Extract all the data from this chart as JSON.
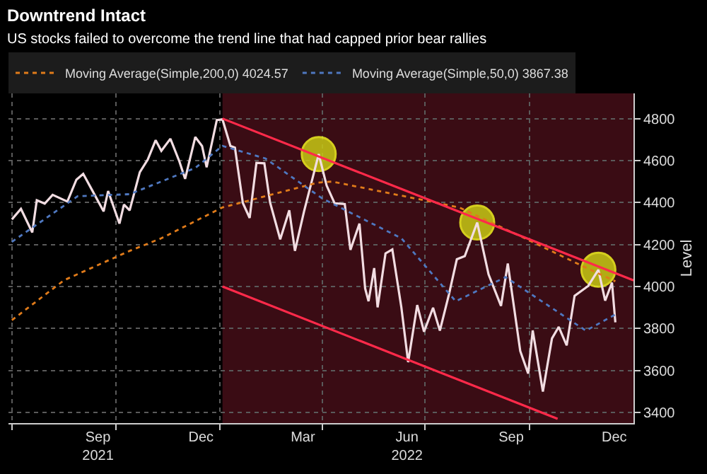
{
  "chart_data": {
    "type": "line",
    "title": "Downtrend Intact",
    "subtitle": "US stocks failed to overcome the trend line that had capped prior bear rallies",
    "ylabel": "Level",
    "xlim": [
      "2021-06-28",
      "2023-01-01"
    ],
    "xticks": [
      {
        "value": "2021-07-01",
        "label": null
      },
      {
        "value": "2021-09-15",
        "label": "Sep\n2021"
      },
      {
        "value": "2021-10-01",
        "label": null
      },
      {
        "value": "2021-12-15",
        "label": "Dec"
      },
      {
        "value": "2022-01-01",
        "label": null
      },
      {
        "value": "2022-03-15",
        "label": "Mar"
      },
      {
        "value": "2022-04-01",
        "label": null
      },
      {
        "value": "2022-06-15",
        "label": "Jun\n2022"
      },
      {
        "value": "2022-07-01",
        "label": null
      },
      {
        "value": "2022-09-15",
        "label": "Sep"
      },
      {
        "value": "2022-10-01",
        "label": null
      },
      {
        "value": "2022-12-15",
        "label": "Dec"
      }
    ],
    "ylim": [
      3350,
      4920
    ],
    "yticks": [
      3400,
      3600,
      3800,
      4000,
      4200,
      4400,
      4600,
      4800
    ],
    "grid": true,
    "legend": "top",
    "bands": [
      {
        "axis": "x",
        "from": "2022-01-03",
        "to": "2023-01-01",
        "color": "#3a0c14"
      }
    ],
    "series": [
      {
        "color": "#f2dde2",
        "line_style": "solid",
        "x": [
          "2021-07-01",
          "2021-07-09",
          "2021-07-19",
          "2021-07-23",
          "2021-07-30",
          "2021-08-06",
          "2021-08-19",
          "2021-08-27",
          "2021-09-02",
          "2021-09-10",
          "2021-09-20",
          "2021-09-24",
          "2021-10-04",
          "2021-10-08",
          "2021-10-13",
          "2021-10-22",
          "2021-10-29",
          "2021-11-05",
          "2021-11-10",
          "2021-11-18",
          "2021-11-26",
          "2021-12-01",
          "2021-12-10",
          "2021-12-16",
          "2021-12-20",
          "2021-12-29",
          "2022-01-03",
          "2022-01-10",
          "2022-01-14",
          "2022-01-21",
          "2022-01-27",
          "2022-02-02",
          "2022-02-09",
          "2022-02-14",
          "2022-02-23",
          "2022-03-03",
          "2022-03-08",
          "2022-03-16",
          "2022-03-29",
          "2022-04-05",
          "2022-04-12",
          "2022-04-21",
          "2022-04-26",
          "2022-05-04",
          "2022-05-09",
          "2022-05-12",
          "2022-05-17",
          "2022-05-20",
          "2022-05-27",
          "2022-06-02",
          "2022-06-10",
          "2022-06-16",
          "2022-06-24",
          "2022-06-30",
          "2022-07-08",
          "2022-07-14",
          "2022-07-22",
          "2022-07-29",
          "2022-08-05",
          "2022-08-16",
          "2022-08-26",
          "2022-09-06",
          "2022-09-12",
          "2022-09-23",
          "2022-09-30",
          "2022-10-04",
          "2022-10-13",
          "2022-10-21",
          "2022-10-27",
          "2022-11-03",
          "2022-11-10",
          "2022-11-22",
          "2022-12-01",
          "2022-12-07",
          "2022-12-13",
          "2022-12-16"
        ],
        "values": [
          4320,
          4370,
          4258,
          4411,
          4395,
          4437,
          4405,
          4509,
          4537,
          4458,
          4358,
          4455,
          4300,
          4391,
          4363,
          4545,
          4605,
          4697,
          4646,
          4704,
          4595,
          4513,
          4712,
          4669,
          4568,
          4793,
          4796,
          4670,
          4662,
          4398,
          4327,
          4589,
          4587,
          4401,
          4225,
          4363,
          4170,
          4357,
          4631,
          4481,
          4397,
          4393,
          4175,
          4300,
          3991,
          3930,
          4088,
          3901,
          4158,
          4177,
          3901,
          3640,
          3912,
          3785,
          3899,
          3790,
          3962,
          4130,
          4145,
          4305,
          4058,
          3908,
          4110,
          3693,
          3586,
          3791,
          3500,
          3753,
          3808,
          3720,
          3956,
          4003,
          4080,
          3933,
          4019,
          3830
        ]
      },
      {
        "type": "line",
        "name": "Moving Average(Simple,200,0) 4024.57",
        "color": "#e07b1a",
        "line_style": "dotted",
        "x": [
          "2021-07-01",
          "2021-08-16",
          "2021-10-13",
          "2021-11-10",
          "2022-01-03",
          "2022-03-28",
          "2022-04-10",
          "2022-07-31",
          "2022-09-27",
          "2022-11-20",
          "2022-12-16"
        ],
        "values": [
          3840,
          4030,
          4170,
          4230,
          4377,
          4495,
          4500,
          4377,
          4230,
          4090,
          4025
        ]
      },
      {
        "type": "line",
        "name": "Moving Average(Simple,50,0) 3867.38",
        "color": "#4f78c0",
        "line_style": "dotted",
        "x": [
          "2021-07-01",
          "2021-08-28",
          "2021-10-13",
          "2021-12-10",
          "2022-01-03",
          "2022-02-10",
          "2022-04-01",
          "2022-06-10",
          "2022-07-28",
          "2022-09-10",
          "2022-11-20",
          "2022-12-16"
        ],
        "values": [
          4213,
          4430,
          4440,
          4565,
          4670,
          4610,
          4420,
          4230,
          3930,
          4045,
          3790,
          3867
        ]
      },
      {
        "type": "line",
        "color": "#ff2a4a",
        "line_style": "solid",
        "x": [
          "2022-01-03",
          "2023-01-01"
        ],
        "values": [
          4800,
          4030
        ]
      },
      {
        "type": "line",
        "color": "#ff2a4a",
        "line_style": "solid",
        "x": [
          "2022-01-03",
          "2022-10-26"
        ],
        "values": [
          4000,
          3370
        ]
      },
      {
        "type": "scatter",
        "color": "#c8c814",
        "marker": "circle",
        "x": [
          "2022-03-29",
          "2022-08-16",
          "2022-12-01"
        ],
        "values": [
          4631,
          4305,
          4080
        ]
      }
    ]
  }
}
